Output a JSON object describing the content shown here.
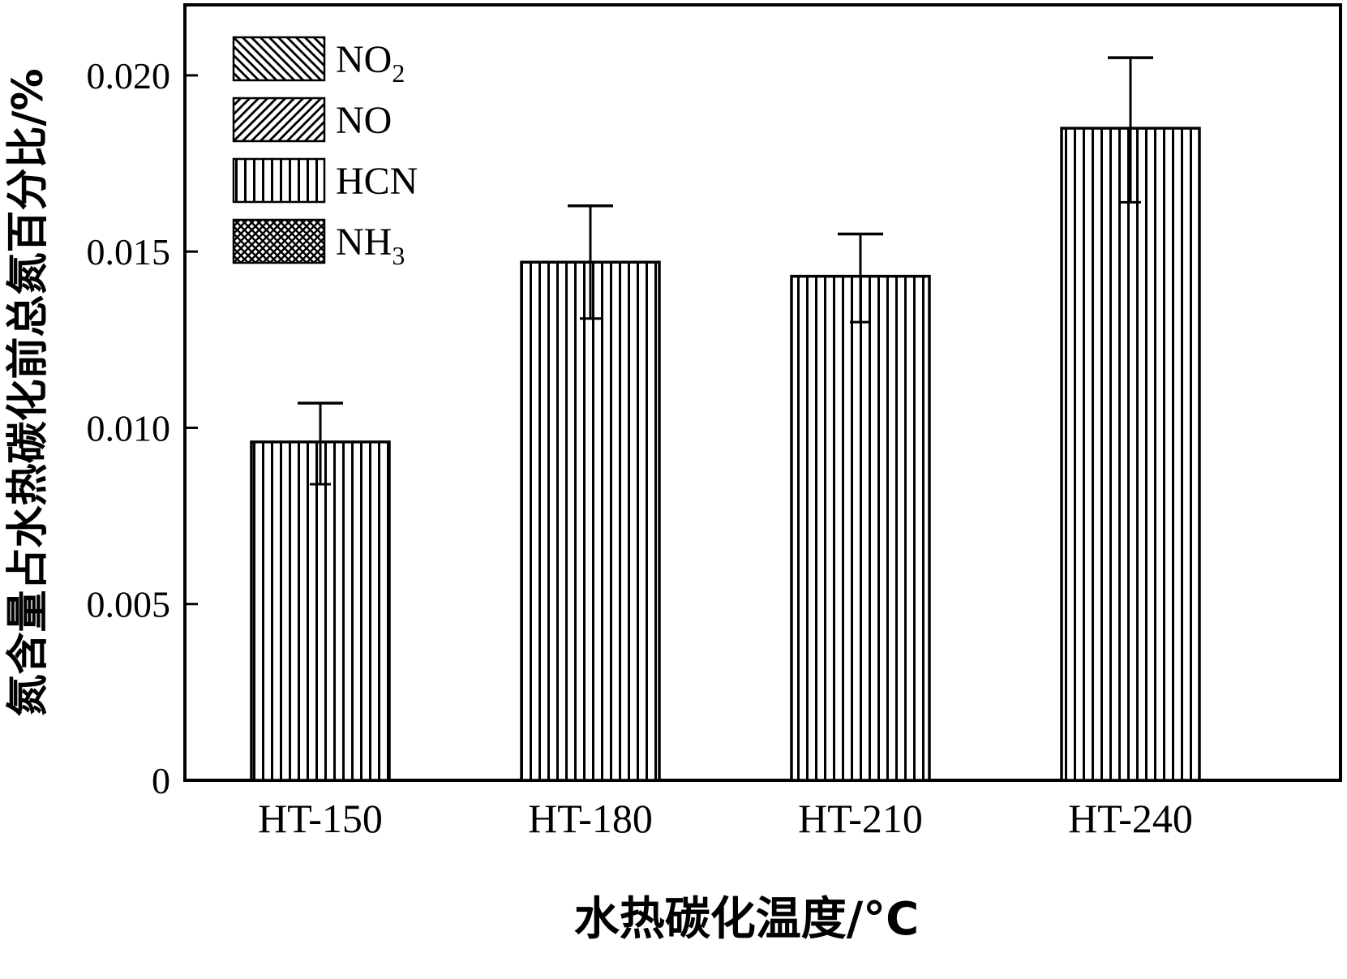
{
  "chart_data": {
    "type": "bar",
    "title": "",
    "xlabel": "水热碳化温度/°C",
    "ylabel": "氮含量占水热碳化前总氮百分比/%",
    "categories": [
      "HT-150",
      "HT-180",
      "HT-210",
      "HT-240"
    ],
    "series": [
      {
        "name": "HCN",
        "pattern": "vertical",
        "values": [
          0.0096,
          0.0147,
          0.0143,
          0.0185
        ],
        "error_upper": [
          0.0107,
          0.0163,
          0.0155,
          0.0205
        ],
        "error_lower": [
          0.0084,
          0.0131,
          0.013,
          0.0164
        ]
      }
    ],
    "legend": [
      {
        "text": "NO",
        "sub": "2",
        "pattern": "diag-back"
      },
      {
        "text": "NO",
        "sub": "",
        "pattern": "diag-fwd"
      },
      {
        "text": "HCN",
        "sub": "",
        "pattern": "vertical"
      },
      {
        "text": "NH",
        "sub": "3",
        "pattern": "cross"
      }
    ],
    "legend_position": "top-left",
    "ylim": [
      0,
      0.022
    ],
    "yticks": [
      0,
      0.005,
      0.01,
      0.015,
      0.02
    ],
    "ytick_labels": [
      "0",
      "0.005",
      "0.010",
      "0.015",
      "0.020"
    ],
    "grid": false,
    "colors": {
      "ink": "#000000",
      "background": "#ffffff"
    }
  }
}
